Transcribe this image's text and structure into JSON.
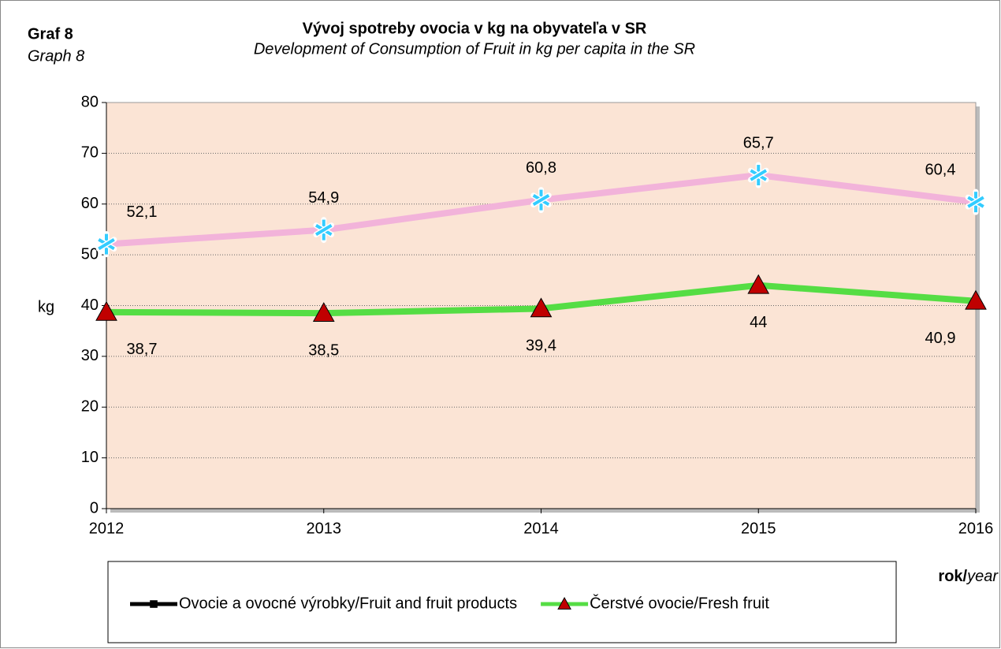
{
  "chart_data": {
    "type": "line",
    "label": "Graf 8",
    "label_en": "Graph 8",
    "title": "Vývoj spotreby ovocia v kg na obyvateľa v SR",
    "subtitle": "Development of Consumption of Fruit in kg per capita in the SR",
    "ylabel": "kg",
    "xlabel": {
      "bold": "rok/",
      "italic": "year"
    },
    "x": [
      2012,
      2013,
      2014,
      2015,
      2016
    ],
    "xlim": [
      2012,
      2016
    ],
    "xticks": [
      2012,
      2013,
      2014,
      2015,
      2016
    ],
    "ylim": [
      0,
      80
    ],
    "yticks": [
      0,
      10,
      20,
      30,
      40,
      50,
      60,
      70,
      80
    ],
    "grid": true,
    "plot_background": "#fbe4d5",
    "series": [
      {
        "name": "Ovocie a ovocné výrobky/Fruit and fruit products",
        "color": "#f2b3da",
        "marker": "asterisk",
        "marker_color": "#33ccff",
        "legend_color": "#000000",
        "legend_marker": "square",
        "values": [
          52.1,
          54.9,
          60.8,
          65.7,
          60.4
        ],
        "value_labels": [
          "52,1",
          "54,9",
          "60,8",
          "65,7",
          "60,4"
        ]
      },
      {
        "name": "Čerstvé ovocie/Fresh fruit",
        "color": "#55dd44",
        "marker": "triangle",
        "marker_color": "#c00000",
        "legend_color": "#55dd44",
        "legend_marker": "triangle",
        "values": [
          38.7,
          38.5,
          39.4,
          44,
          40.9
        ],
        "value_labels": [
          "38,7",
          "38,5",
          "39,4",
          "44",
          "40,9"
        ]
      }
    ]
  }
}
